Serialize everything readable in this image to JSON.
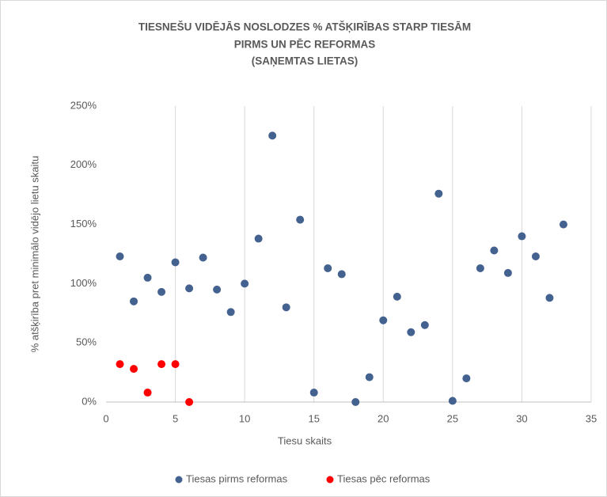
{
  "chart_data": {
    "type": "scatter",
    "title": [
      "TIESNEŠU VIDĒJĀS NOSLODZES % ATŠĶIRĪBAS STARP TIESĀM",
      "PIRMS UN PĒC REFORMAS",
      "(SAŅEMTAS LIETAS)"
    ],
    "xlabel": "Tiesu skaits",
    "ylabel": "% atšķirība pret minimālo vidējo lietu skaitu",
    "xlim": [
      0,
      35
    ],
    "xticks": [
      0,
      5,
      10,
      15,
      20,
      25,
      30,
      35
    ],
    "ylim": [
      0,
      250
    ],
    "yticks": [
      {
        "value": 0,
        "label": "0%"
      },
      {
        "value": 50,
        "label": "50%"
      },
      {
        "value": 100,
        "label": "100%"
      },
      {
        "value": 150,
        "label": "150%"
      },
      {
        "value": 200,
        "label": "200%"
      },
      {
        "value": 250,
        "label": "250%"
      }
    ],
    "xgrid": true,
    "legend": "bottom",
    "series": [
      {
        "name": "Tiesas pirms reformas",
        "color": "#44628f",
        "x": [
          1,
          2,
          3,
          4,
          5,
          6,
          7,
          8,
          9,
          10,
          11,
          12,
          13,
          14,
          15,
          16,
          17,
          18,
          19,
          20,
          21,
          22,
          23,
          24,
          25,
          26,
          27,
          28,
          29,
          30,
          31,
          32,
          33
        ],
        "values": [
          123,
          85,
          105,
          93,
          118,
          96,
          122,
          95,
          76,
          100,
          138,
          225,
          80,
          154,
          8,
          113,
          108,
          0,
          21,
          69,
          89,
          59,
          65,
          176,
          1,
          20,
          113,
          128,
          109,
          140,
          123,
          88,
          150
        ]
      },
      {
        "name": "Tiesas pēc reformas",
        "color": "#ff0000",
        "x": [
          1,
          2,
          3,
          4,
          5,
          6
        ],
        "values": [
          32,
          28,
          8,
          32,
          32,
          0
        ]
      }
    ]
  }
}
